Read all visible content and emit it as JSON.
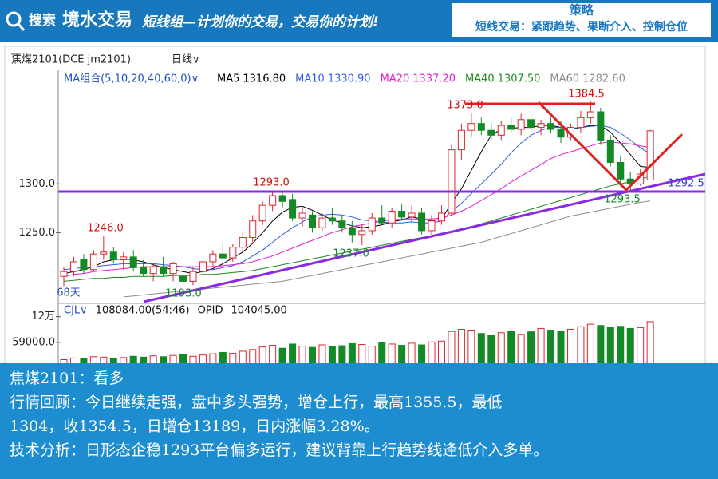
{
  "header": {
    "search": "搜索",
    "brand": "境水交易",
    "slogan": "短线组—计划你的交易，交易你的计划!",
    "strategy_title": "策略",
    "strategy_text": "短线交易：紧跟趋势、果断介入、控制仓位"
  },
  "chart_data": {
    "type": "candlestick",
    "symbol": "焦煤2101(DCE jm2101)",
    "period": "日线∨",
    "ma_group": "MA组合(5,10,20,40,60,0)∨",
    "open": [
      1205,
      1210,
      1222,
      1212,
      1228,
      1230,
      1222,
      1225,
      1214,
      1208,
      1215,
      1208,
      1205,
      1200,
      1210,
      1220,
      1228,
      1224,
      1235,
      1245,
      1262,
      1278,
      1288,
      1284,
      1265,
      1268,
      1255,
      1265,
      1262,
      1255,
      1248,
      1252,
      1265,
      1260,
      1272,
      1266,
      1270,
      1252,
      1262,
      1270,
      1335,
      1355,
      1362,
      1355,
      1350,
      1360,
      1356,
      1366,
      1358,
      1362,
      1356,
      1348,
      1358,
      1368,
      1374,
      1345,
      1322,
      1305,
      1300,
      1304
    ],
    "high": [
      1215,
      1225,
      1228,
      1232,
      1246,
      1235,
      1230,
      1232,
      1222,
      1218,
      1225,
      1220,
      1212,
      1215,
      1225,
      1232,
      1240,
      1238,
      1250,
      1268,
      1282,
      1293,
      1292,
      1290,
      1275,
      1272,
      1270,
      1275,
      1268,
      1262,
      1258,
      1270,
      1278,
      1275,
      1280,
      1278,
      1275,
      1268,
      1278,
      1340,
      1362,
      1373,
      1368,
      1362,
      1365,
      1368,
      1372,
      1370,
      1366,
      1368,
      1365,
      1362,
      1375,
      1384.5,
      1378,
      1350,
      1328,
      1312,
      1315,
      1355.5
    ],
    "low": [
      1195,
      1205,
      1208,
      1210,
      1222,
      1218,
      1212,
      1210,
      1205,
      1200,
      1205,
      1200,
      1193,
      1196,
      1205,
      1215,
      1222,
      1220,
      1230,
      1240,
      1258,
      1272,
      1276,
      1262,
      1256,
      1250,
      1252,
      1258,
      1250,
      1240,
      1237,
      1248,
      1258,
      1255,
      1262,
      1260,
      1248,
      1248,
      1258,
      1268,
      1325,
      1348,
      1350,
      1345,
      1345,
      1352,
      1350,
      1355,
      1350,
      1352,
      1342,
      1345,
      1352,
      1362,
      1340,
      1318,
      1300,
      1293.5,
      1298,
      1304
    ],
    "close": [
      1210,
      1220,
      1212,
      1228,
      1230,
      1222,
      1225,
      1214,
      1208,
      1215,
      1208,
      1218,
      1200,
      1210,
      1220,
      1228,
      1224,
      1235,
      1245,
      1262,
      1278,
      1288,
      1282,
      1265,
      1270,
      1255,
      1265,
      1262,
      1255,
      1248,
      1252,
      1265,
      1260,
      1272,
      1266,
      1270,
      1252,
      1262,
      1270,
      1335,
      1355,
      1362,
      1355,
      1350,
      1360,
      1356,
      1366,
      1358,
      1362,
      1356,
      1348,
      1358,
      1368,
      1374,
      1345,
      1322,
      1305,
      1300,
      1310,
      1354.5
    ],
    "volume": [
      18000,
      22000,
      20000,
      25000,
      24000,
      21000,
      23000,
      26000,
      24000,
      27000,
      25000,
      28000,
      30000,
      26000,
      29000,
      32000,
      35000,
      33000,
      38000,
      42000,
      48000,
      52000,
      45000,
      55000,
      50000,
      47000,
      53000,
      49000,
      51000,
      56000,
      54000,
      50000,
      58000,
      55000,
      52000,
      57000,
      53000,
      60000,
      62000,
      85000,
      90000,
      88000,
      80000,
      75000,
      82000,
      86000,
      78000,
      84000,
      92000,
      88000,
      85000,
      90000,
      96000,
      102000,
      99000,
      95000,
      97000,
      92000,
      94000,
      108084
    ],
    "series": [
      {
        "name": "MA5",
        "color": "#000000",
        "legend_value": "1316.80",
        "values": [
          1208,
          1210,
          1212,
          1215,
          1220,
          1222,
          1223,
          1222,
          1220,
          1217,
          1214,
          1212,
          1210,
          1208,
          1210,
          1213,
          1218,
          1224,
          1230,
          1239,
          1250,
          1262,
          1271,
          1276,
          1277,
          1273,
          1268,
          1263,
          1260,
          1257,
          1255,
          1256,
          1258,
          1261,
          1263,
          1266,
          1264,
          1262,
          1264,
          1280,
          1295,
          1314,
          1333,
          1350,
          1356,
          1357,
          1358,
          1358,
          1360,
          1360,
          1358,
          1356,
          1358,
          1360,
          1360,
          1353,
          1342,
          1330,
          1318,
          1316.8
        ]
      },
      {
        "name": "MA10",
        "color": "#2f5fe0",
        "legend_value": "1330.90",
        "values": [
          1212,
          1213,
          1214,
          1215,
          1216,
          1217,
          1218,
          1218,
          1218,
          1218,
          1217,
          1216,
          1215,
          1213,
          1212,
          1212,
          1214,
          1216,
          1220,
          1226,
          1232,
          1240,
          1248,
          1255,
          1261,
          1266,
          1268,
          1269,
          1268,
          1266,
          1263,
          1262,
          1261,
          1260,
          1260,
          1261,
          1260,
          1260,
          1262,
          1272,
          1280,
          1290,
          1300,
          1310,
          1320,
          1332,
          1342,
          1350,
          1355,
          1358,
          1358,
          1357,
          1358,
          1359,
          1360,
          1358,
          1352,
          1345,
          1337,
          1330.9
        ]
      },
      {
        "name": "MA20",
        "color": "#e020d0",
        "legend_value": "1337.20",
        "values": [
          1205,
          1207,
          1208,
          1210,
          1211,
          1212,
          1213,
          1214,
          1215,
          1215,
          1215,
          1215,
          1215,
          1215,
          1215,
          1215,
          1216,
          1217,
          1218,
          1220,
          1223,
          1226,
          1230,
          1234,
          1238,
          1242,
          1246,
          1250,
          1253,
          1256,
          1258,
          1260,
          1262,
          1263,
          1264,
          1264,
          1264,
          1264,
          1265,
          1268,
          1272,
          1277,
          1283,
          1289,
          1295,
          1302,
          1308,
          1314,
          1320,
          1326,
          1330,
          1333,
          1336,
          1339,
          1342,
          1343,
          1342,
          1341,
          1339,
          1337.2
        ]
      },
      {
        "name": "MA40",
        "color": "#1f8a1f",
        "legend_value": "1307.50",
        "values": [
          1200,
          1201,
          1202,
          1203,
          1203,
          1204,
          1204,
          1205,
          1205,
          1205,
          1205,
          1206,
          1206,
          1206,
          1207,
          1207,
          1208,
          1209,
          1210,
          1211,
          1213,
          1215,
          1217,
          1219,
          1221,
          1223,
          1225,
          1227,
          1229,
          1231,
          1233,
          1235,
          1237,
          1239,
          1241,
          1243,
          1245,
          1246,
          1248,
          1250,
          1253,
          1256,
          1259,
          1262,
          1265,
          1268,
          1271,
          1274,
          1277,
          1280,
          1283,
          1286,
          1289,
          1292,
          1295,
          1298,
          1300,
          1302,
          1305,
          1307.5
        ]
      },
      {
        "name": "MA60",
        "color": "#8c8c8c",
        "legend_value": "1282.60",
        "values": [
          null,
          null,
          null,
          null,
          null,
          null,
          1184,
          1185,
          1186,
          1187,
          1188,
          1189,
          1190,
          1191,
          1192,
          1193,
          1194,
          1195,
          1196,
          1197,
          1198,
          1199,
          1200,
          1202,
          1204,
          1206,
          1208,
          1210,
          1212,
          1214,
          1216,
          1218,
          1220,
          1222,
          1224,
          1226,
          1228,
          1230,
          1232,
          1234,
          1236,
          1238,
          1240,
          1243,
          1246,
          1249,
          1252,
          1255,
          1258,
          1261,
          1264,
          1267,
          1269,
          1271,
          1273,
          1275,
          1277,
          1279,
          1281,
          1282.6
        ]
      }
    ],
    "ylim": [
      1179,
      1415
    ],
    "yticks": [
      {
        "value": 1250,
        "label": "1250.0"
      },
      {
        "value": 1300,
        "label": "1300.0"
      }
    ],
    "volume_ylim": [
      0,
      125000
    ],
    "volume_yticks": [
      {
        "value": 59000,
        "label": "59000.0"
      },
      {
        "value": 120000,
        "label": "12万"
      }
    ],
    "volume_header": [
      "CJL∨",
      "108084.00(54:46)",
      "OPID",
      "104045.00"
    ],
    "annotations": [
      "1373.0",
      "1384.5",
      "1293.0",
      "1246.0",
      "1237.0",
      "1193.0",
      "1293.5",
      "1292.5",
      "68天"
    ],
    "up_color": "#e0242c",
    "down_color": "#138a25"
  },
  "commentary": {
    "lines": [
      "焦煤2101：看多",
      "行情回顾：今日继续走强，盘中多头强势，增仓上行，最高1355.5，最低",
      "1304，收1354.5，日增仓13189，日内涨幅3.28%。",
      "技术分析：日形态企稳1293平台偏多运行，建议背靠上行趋势线逢低介入多单。"
    ]
  }
}
